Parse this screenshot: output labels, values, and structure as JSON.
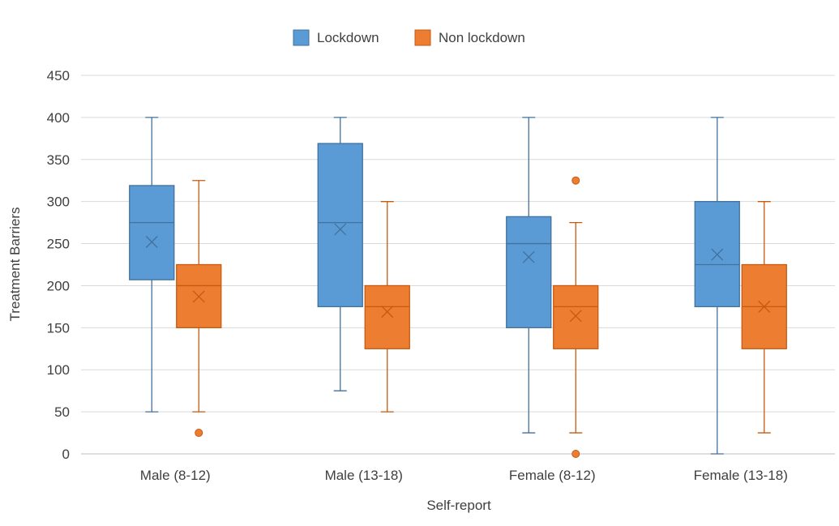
{
  "chart_data": {
    "type": "box",
    "xlabel": "Self-report",
    "ylabel": "Treatment Barriers",
    "ylim": [
      0,
      450
    ],
    "yticks": [
      0,
      50,
      100,
      150,
      200,
      250,
      300,
      350,
      400,
      450
    ],
    "grid": true,
    "legend_position": "top-center",
    "categories": [
      "Male (8-12)",
      "Male (13-18)",
      "Female (8-12)",
      "Female (13-18)"
    ],
    "series": [
      {
        "name": "Lockdown",
        "color": "#5b9bd5",
        "stroke": "#41719c",
        "boxes": [
          {
            "min": 50,
            "q1": 207,
            "median": 275,
            "q3": 319,
            "max": 400,
            "mean": 252,
            "outliers": []
          },
          {
            "min": 75,
            "q1": 175,
            "median": 275,
            "q3": 369,
            "max": 400,
            "mean": 267,
            "outliers": []
          },
          {
            "min": 25,
            "q1": 150,
            "median": 250,
            "q3": 282,
            "max": 400,
            "mean": 234,
            "outliers": []
          },
          {
            "min": 0,
            "q1": 175,
            "median": 225,
            "q3": 300,
            "max": 400,
            "mean": 237,
            "outliers": []
          }
        ]
      },
      {
        "name": "Non lockdown",
        "color": "#ed7d31",
        "stroke": "#c55a11",
        "boxes": [
          {
            "min": 50,
            "q1": 150,
            "median": 200,
            "q3": 225,
            "max": 325,
            "mean": 187,
            "outliers": [
              25
            ]
          },
          {
            "min": 50,
            "q1": 125,
            "median": 175,
            "q3": 200,
            "max": 300,
            "mean": 169,
            "outliers": []
          },
          {
            "min": 25,
            "q1": 125,
            "median": 175,
            "q3": 200,
            "max": 275,
            "mean": 164,
            "outliers": [
              325,
              0
            ]
          },
          {
            "min": 25,
            "q1": 125,
            "median": 175,
            "q3": 225,
            "max": 300,
            "mean": 175,
            "outliers": []
          }
        ]
      }
    ]
  }
}
